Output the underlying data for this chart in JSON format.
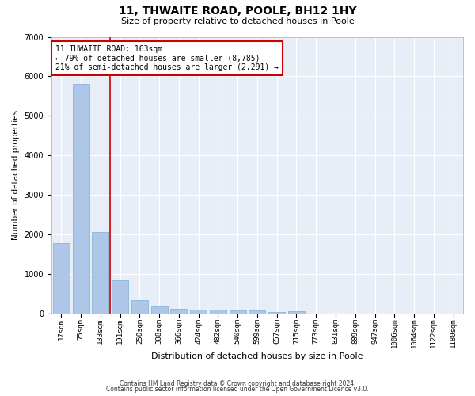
{
  "title": "11, THWAITE ROAD, POOLE, BH12 1HY",
  "subtitle": "Size of property relative to detached houses in Poole",
  "xlabel": "Distribution of detached houses by size in Poole",
  "ylabel": "Number of detached properties",
  "bar_color": "#aec6e8",
  "bar_edgecolor": "#7aafd4",
  "background_color": "#e8eef8",
  "grid_color": "#ffffff",
  "categories": [
    "17sqm",
    "75sqm",
    "133sqm",
    "191sqm",
    "250sqm",
    "308sqm",
    "366sqm",
    "424sqm",
    "482sqm",
    "540sqm",
    "599sqm",
    "657sqm",
    "715sqm",
    "773sqm",
    "831sqm",
    "889sqm",
    "947sqm",
    "1006sqm",
    "1064sqm",
    "1122sqm",
    "1180sqm"
  ],
  "values": [
    1780,
    5800,
    2060,
    830,
    340,
    185,
    120,
    100,
    90,
    75,
    70,
    30,
    60,
    0,
    0,
    0,
    0,
    0,
    0,
    0,
    0
  ],
  "ylim": [
    0,
    7000
  ],
  "yticks": [
    0,
    1000,
    2000,
    3000,
    4000,
    5000,
    6000,
    7000
  ],
  "property_line_x": 2.5,
  "property_line_color": "#cc0000",
  "annotation_text": "11 THWAITE ROAD: 163sqm\n← 79% of detached houses are smaller (8,785)\n21% of semi-detached houses are larger (2,291) →",
  "annotation_box_color": "#cc0000",
  "footer_line1": "Contains HM Land Registry data © Crown copyright and database right 2024.",
  "footer_line2": "Contains public sector information licensed under the Open Government Licence v3.0.",
  "title_fontsize": 10,
  "subtitle_fontsize": 8,
  "xlabel_fontsize": 8,
  "ylabel_fontsize": 7.5,
  "tick_fontsize": 6.5,
  "ytick_fontsize": 7,
  "annotation_fontsize": 7,
  "footer_fontsize": 5.5
}
